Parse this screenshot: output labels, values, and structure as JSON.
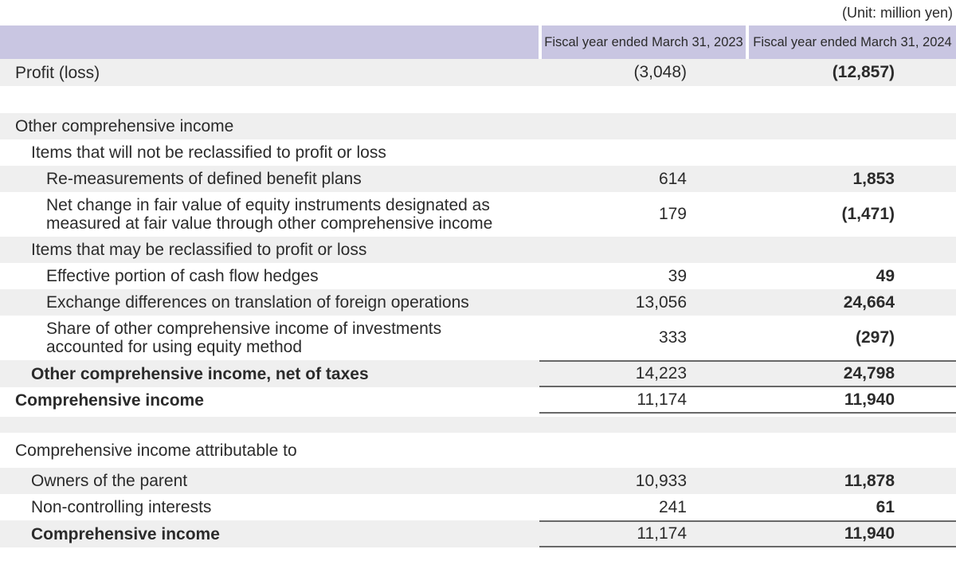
{
  "unit_note": "(Unit: million yen)",
  "columns": [
    "Fiscal year ended March 31, 2023",
    "Fiscal year ended March 31, 2024"
  ],
  "rows": [
    {
      "label": "Profit (loss)",
      "indent": 0,
      "bg": "gray",
      "v2023": "(3,048)",
      "v2024": "(12,857)",
      "h34": true
    },
    {
      "spacer": "white"
    },
    {
      "label": "Other comprehensive income",
      "indent": 0,
      "bg": "gray"
    },
    {
      "label": "Items that will not be reclassified to profit or loss",
      "indent": 1,
      "bg": "white"
    },
    {
      "label": "Re-measurements of defined benefit plans",
      "indent": 2,
      "bg": "gray",
      "v2023": "614",
      "v2024": "1,853"
    },
    {
      "label": "Net change in fair value of equity instruments designated as\nmeasured at fair value through other comprehensive income",
      "indent": 2,
      "bg": "white",
      "v2023": "179",
      "v2024": "(1,471)"
    },
    {
      "label": "Items that may be reclassified to profit or loss",
      "indent": 1,
      "bg": "gray"
    },
    {
      "label": "Effective portion of cash flow hedges",
      "indent": 2,
      "bg": "white",
      "v2023": "39",
      "v2024": "49"
    },
    {
      "label": "Exchange differences on translation of foreign operations",
      "indent": 2,
      "bg": "gray",
      "v2023": "13,056",
      "v2024": "24,664"
    },
    {
      "label": "Share of other comprehensive income of investments\naccounted for using equity method",
      "indent": 2,
      "bg": "white",
      "v2023": "333",
      "v2024": "(297)"
    },
    {
      "label": "Other comprehensive income, net of taxes",
      "indent": 1,
      "bold": true,
      "bg": "gray",
      "v2023": "14,223",
      "v2024": "24,798",
      "rule_top": true,
      "rule_bottom": true,
      "h34": true
    },
    {
      "label": "Comprehensive income",
      "indent": 0,
      "bold": true,
      "bg": "white",
      "v2023": "11,174",
      "v2024": "11,940",
      "rule_bottom": true
    },
    {
      "spacer": "gray"
    },
    {
      "label": "Comprehensive income attributable to",
      "indent": 0,
      "bg": "white",
      "tall": true
    },
    {
      "label": "Owners of the parent",
      "indent": 1,
      "bg": "gray",
      "v2023": "10,933",
      "v2024": "11,878"
    },
    {
      "label": "Non-controlling interests",
      "indent": 1,
      "bg": "white",
      "v2023": "241",
      "v2024": "61"
    },
    {
      "label": "Comprehensive income",
      "indent": 1,
      "bold": true,
      "bg": "gray",
      "v2023": "11,174",
      "v2024": "11,940",
      "rule_top": true,
      "rule_bottom": true,
      "h34": true
    }
  ],
  "colors": {
    "header_bg": "#c9c6e2",
    "row_gray": "#efefef",
    "text": "#2b2b2b",
    "rule": "#686868"
  }
}
